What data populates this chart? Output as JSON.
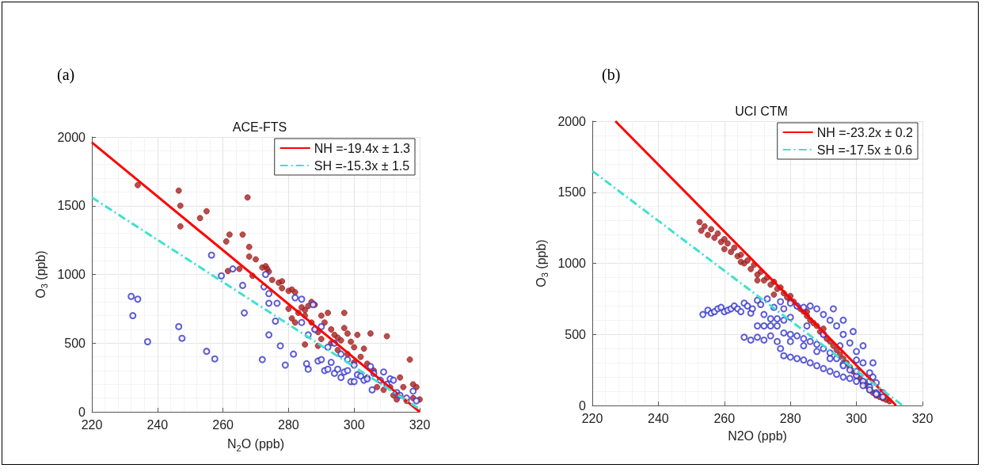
{
  "chart_data": [
    {
      "type": "scatter",
      "title": "ACE-FTS",
      "xlabel": "N$_{2}$O (ppb)",
      "ylabel": "O$_{3}$ (ppb)",
      "annotations": [
        "(a)"
      ],
      "xlim": [
        220,
        320
      ],
      "xticks": [
        220,
        240,
        260,
        280,
        300,
        320
      ],
      "ylim": [
        0,
        2000
      ],
      "yticks": [
        0,
        500,
        1000,
        1500,
        2000
      ],
      "grid": true,
      "legend": "top right",
      "series": [
        {
          "marker": "circle",
          "color": "#a52222",
          "x": [
            234,
            246.5,
            247,
            247,
            253,
            255,
            261,
            262,
            261.5,
            265,
            266,
            267.5,
            268,
            268,
            269,
            270,
            272,
            273,
            273.5,
            274,
            275,
            277,
            278,
            278,
            280,
            281,
            282,
            280,
            281,
            282,
            283,
            284,
            285,
            285,
            286,
            287,
            288,
            287,
            285,
            288,
            289,
            290,
            291,
            292,
            293,
            294,
            295,
            296,
            297,
            297,
            298,
            299,
            300,
            301,
            302,
            303,
            305,
            304,
            306,
            307,
            309,
            310,
            311,
            312,
            313,
            314,
            315,
            317,
            318,
            319,
            320,
            316,
            318,
            293,
            295,
            290,
            289,
            300,
            298,
            304
          ],
          "values": [
            1650,
            1610,
            1500,
            1350,
            1410,
            1460,
            1240,
            1290,
            1025,
            1040,
            1290,
            1560,
            1200,
            1130,
            990,
            1110,
            1050,
            1060,
            1040,
            1020,
            960,
            940,
            950,
            900,
            880,
            890,
            870,
            750,
            680,
            650,
            720,
            760,
            740,
            700,
            770,
            800,
            780,
            650,
            490,
            600,
            580,
            700,
            650,
            720,
            600,
            560,
            540,
            520,
            720,
            610,
            570,
            510,
            470,
            560,
            400,
            460,
            570,
            350,
            300,
            180,
            160,
            550,
            180,
            120,
            90,
            250,
            180,
            380,
            200,
            180,
            90,
            80,
            100,
            500,
            450,
            530,
            480,
            360,
            420,
            250
          ]
        },
        {
          "marker": "open circle",
          "color": "#3333cc",
          "x": [
            232,
            234,
            232.5,
            237,
            246.5,
            247.5,
            255,
            257.5,
            256.5,
            259.5,
            263,
            266,
            266.5,
            272,
            272.5,
            273,
            274,
            274,
            274,
            276.5,
            276,
            277.5,
            279,
            281.5,
            282,
            284,
            285.5,
            286,
            287.5,
            289,
            290,
            291,
            292,
            293,
            294,
            295,
            296,
            297,
            298,
            299,
            300,
            301,
            302,
            303,
            304,
            305,
            305.5,
            306,
            308,
            309,
            310,
            311,
            312,
            313,
            314,
            316,
            318,
            319,
            288,
            290,
            292,
            294,
            296,
            298,
            300,
            286,
            284
          ],
          "values": [
            840,
            820,
            700,
            510,
            620,
            535,
            440,
            385,
            1140,
            990,
            1040,
            920,
            720,
            380,
            910,
            1000,
            860,
            790,
            560,
            790,
            660,
            480,
            340,
            420,
            830,
            820,
            350,
            310,
            780,
            370,
            380,
            300,
            310,
            360,
            280,
            310,
            250,
            290,
            300,
            220,
            220,
            270,
            260,
            230,
            240,
            330,
            160,
            280,
            230,
            290,
            200,
            240,
            230,
            140,
            120,
            100,
            150,
            80,
            600,
            620,
            470,
            500,
            420,
            380,
            340,
            560,
            650
          ]
        },
        {
          "type": "line",
          "name": "NH =-19.4x ± 1.3",
          "color": "#ff0000",
          "line_style": "solid",
          "marker": "none",
          "x": [
            220,
            320
          ],
          "values": [
            1960,
            0
          ]
        },
        {
          "type": "line",
          "name": "SH =-15.3x ± 1.5",
          "color": "#40e0d0",
          "line_style": "dashed",
          "marker": "none",
          "x": [
            220,
            320
          ],
          "values": [
            1560,
            20
          ]
        }
      ]
    },
    {
      "type": "scatter",
      "title": "UCI CTM",
      "xlabel": "N2O (ppb)",
      "ylabel": "O$_{3}$ (ppb)",
      "annotations": [
        "(b)"
      ],
      "xlim": [
        220,
        320
      ],
      "xticks": [
        220,
        240,
        260,
        280,
        300,
        320
      ],
      "ylim": [
        0,
        2000
      ],
      "yticks": [
        0,
        500,
        1000,
        1500,
        2000
      ],
      "grid": true,
      "legend": "top right",
      "series": [
        {
          "marker": "circle",
          "color": "#a52222",
          "x": [
            252.5,
            253,
            254,
            255,
            256,
            257,
            258,
            259,
            260,
            261,
            262,
            263,
            264,
            265,
            266,
            267,
            268,
            269,
            270,
            271,
            272,
            273,
            274,
            275,
            276,
            277,
            278,
            279,
            280,
            281,
            282,
            283,
            284,
            285,
            286,
            287,
            288,
            289,
            290,
            291,
            292,
            293,
            294,
            295,
            296,
            297,
            298,
            299,
            300,
            301,
            302,
            303,
            304,
            305,
            306,
            307,
            308,
            309,
            310,
            275,
            280,
            285,
            290,
            270,
            265,
            260
          ],
          "values": [
            1290,
            1230,
            1260,
            1200,
            1240,
            1180,
            1210,
            1150,
            1100,
            1140,
            1080,
            1110,
            1050,
            1060,
            1000,
            1020,
            960,
            990,
            920,
            940,
            880,
            900,
            850,
            870,
            820,
            830,
            790,
            760,
            740,
            730,
            700,
            680,
            660,
            630,
            600,
            580,
            560,
            520,
            500,
            470,
            450,
            420,
            390,
            360,
            330,
            300,
            270,
            240,
            210,
            190,
            160,
            140,
            110,
            90,
            70,
            60,
            50,
            40,
            30,
            780,
            770,
            660,
            540,
            880,
            1010,
            1170
          ]
        },
        {
          "marker": "open circle",
          "color": "#3333cc",
          "x": [
            253.5,
            255,
            256,
            257,
            258,
            259,
            260,
            261,
            262,
            263,
            264,
            265,
            266,
            267,
            268,
            268.5,
            270,
            271,
            272,
            273,
            274,
            275,
            276,
            277,
            278,
            280,
            282,
            284,
            286,
            288,
            290,
            292,
            294,
            296,
            298,
            300,
            302,
            304,
            306,
            308,
            270,
            272,
            274,
            276,
            278,
            270,
            266,
            268,
            272,
            274,
            276,
            278,
            280,
            282,
            284,
            286,
            288,
            290,
            292,
            294,
            296,
            298,
            300,
            302,
            304,
            306,
            277,
            278,
            280,
            282,
            284,
            286,
            288,
            290,
            292,
            294,
            296,
            298,
            300,
            302,
            304,
            306,
            308,
            280,
            284,
            288,
            292,
            296,
            300,
            304,
            280,
            285,
            290,
            295,
            300,
            305,
            293,
            296,
            299,
            302,
            305
          ],
          "values": [
            640,
            670,
            650,
            660,
            680,
            690,
            660,
            670,
            680,
            700,
            680,
            660,
            720,
            700,
            650,
            680,
            740,
            710,
            640,
            750,
            610,
            690,
            610,
            730,
            680,
            720,
            700,
            690,
            700,
            680,
            640,
            600,
            560,
            500,
            440,
            380,
            300,
            230,
            160,
            90,
            560,
            560,
            560,
            560,
            600,
            480,
            480,
            460,
            460,
            490,
            450,
            510,
            500,
            490,
            470,
            450,
            430,
            400,
            370,
            330,
            290,
            250,
            210,
            170,
            130,
            90,
            400,
            350,
            340,
            330,
            320,
            300,
            280,
            260,
            240,
            220,
            200,
            190,
            170,
            140,
            110,
            80,
            60,
            450,
            420,
            380,
            330,
            280,
            240,
            170,
            620,
            560,
            500,
            420,
            320,
            200,
            680,
            600,
            520,
            420,
            300
          ]
        },
        {
          "type": "line",
          "name": "NH =-23.2x ± 0.2",
          "color": "#ff0000",
          "line_style": "solid",
          "marker": "none",
          "x": [
            227,
            312
          ],
          "values": [
            2000,
            0
          ]
        },
        {
          "type": "line",
          "name": "SH =-17.5x ± 0.6",
          "color": "#40e0d0",
          "line_style": "dashed",
          "marker": "none",
          "x": [
            220,
            314
          ],
          "values": [
            1650,
            0
          ]
        }
      ]
    }
  ]
}
